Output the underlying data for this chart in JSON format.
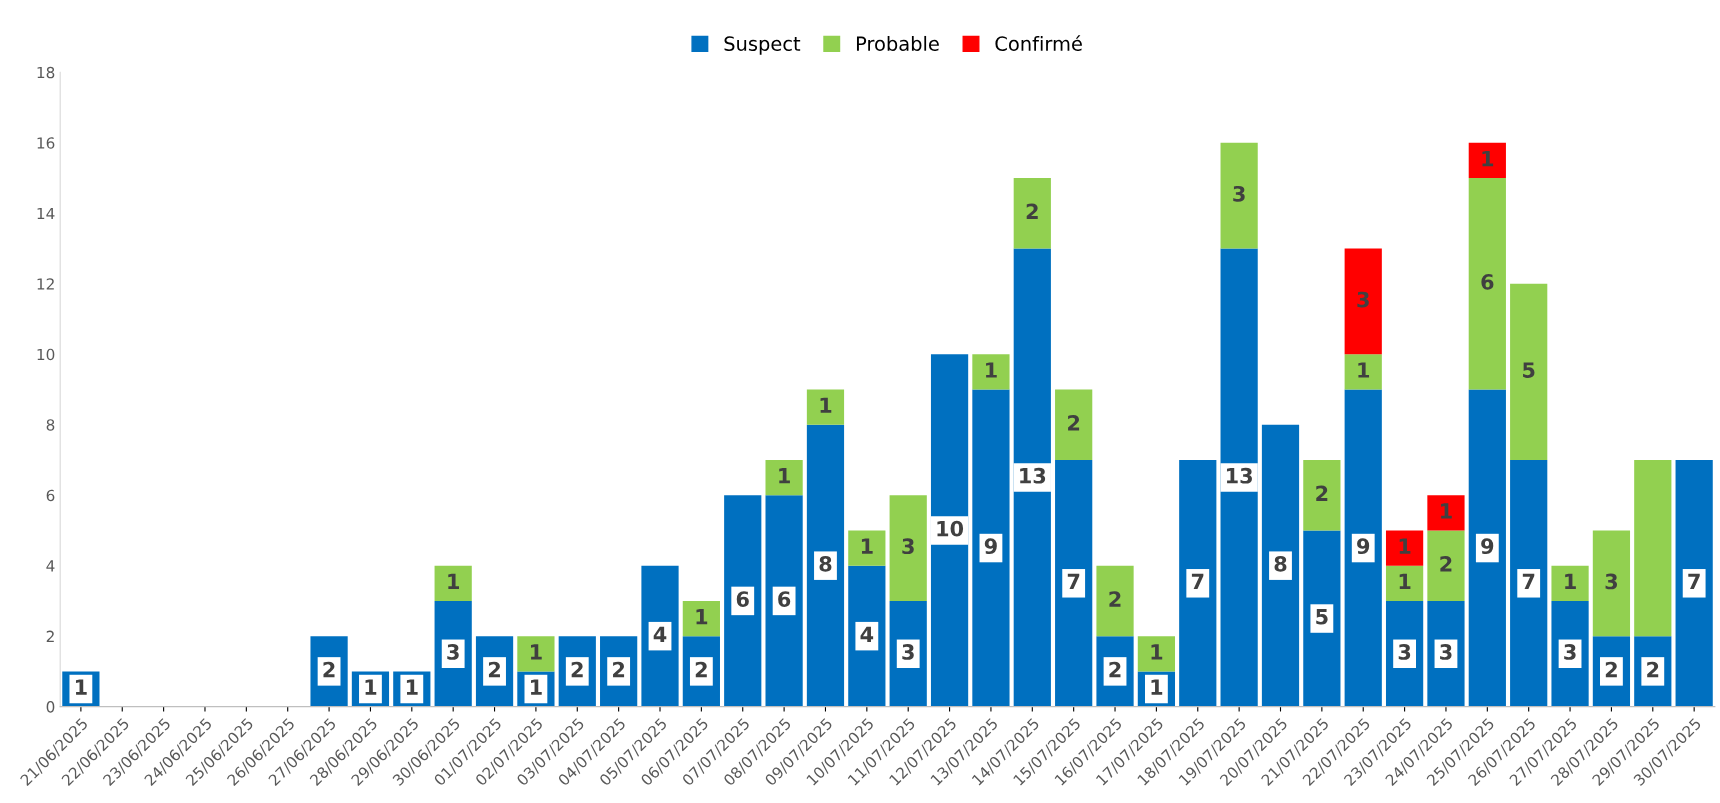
{
  "chart_data": {
    "type": "bar",
    "stacked": true,
    "categories": [
      "21/06/2025",
      "22/06/2025",
      "23/06/2025",
      "24/06/2025",
      "25/06/2025",
      "26/06/2025",
      "27/06/2025",
      "28/06/2025",
      "29/06/2025",
      "30/06/2025",
      "01/07/2025",
      "02/07/2025",
      "03/07/2025",
      "04/07/2025",
      "05/07/2025",
      "06/07/2025",
      "07/07/2025",
      "08/07/2025",
      "09/07/2025",
      "10/07/2025",
      "11/07/2025",
      "12/07/2025",
      "13/07/2025",
      "14/07/2025",
      "15/07/2025",
      "16/07/2025",
      "17/07/2025",
      "18/07/2025",
      "19/07/2025",
      "20/07/2025",
      "21/07/2025",
      "22/07/2025",
      "23/07/2025",
      "24/07/2025",
      "25/07/2025",
      "26/07/2025",
      "27/07/2025",
      "28/07/2025",
      "29/07/2025",
      "30/07/2025"
    ],
    "series": [
      {
        "name": "Suspect",
        "color": "#0070c0",
        "values": [
          1,
          0,
          0,
          0,
          0,
          0,
          2,
          1,
          1,
          3,
          2,
          1,
          2,
          2,
          4,
          2,
          6,
          6,
          8,
          4,
          3,
          10,
          9,
          13,
          7,
          2,
          1,
          7,
          13,
          8,
          5,
          9,
          3,
          3,
          9,
          7,
          3,
          2,
          2,
          7
        ],
        "value_labels": [
          "1",
          null,
          null,
          null,
          null,
          null,
          "2",
          "1",
          "1",
          "3",
          "2",
          "1",
          "2",
          "2",
          "4",
          "2",
          "6",
          "6",
          "8",
          "4",
          "3",
          "10",
          "9",
          "13",
          "7",
          "2",
          "1",
          "7",
          "13",
          "8",
          "5",
          "9",
          "3",
          "3",
          "9",
          "7",
          "3",
          "2",
          "2",
          "7"
        ]
      },
      {
        "name": "Probable",
        "color": "#92d050",
        "values": [
          0,
          0,
          0,
          0,
          0,
          0,
          0,
          0,
          0,
          1,
          0,
          1,
          0,
          0,
          0,
          1,
          0,
          1,
          1,
          1,
          3,
          0,
          1,
          2,
          2,
          2,
          1,
          0,
          3,
          0,
          2,
          1,
          1,
          2,
          6,
          5,
          1,
          3,
          5,
          0
        ],
        "value_labels": [
          null,
          null,
          null,
          null,
          null,
          null,
          null,
          null,
          null,
          "1",
          null,
          "1",
          null,
          null,
          null,
          "1",
          null,
          "1",
          "1",
          "1",
          "3",
          null,
          "1",
          "2",
          "2",
          "2",
          "1",
          null,
          "3",
          null,
          "2",
          "1",
          "1",
          "2",
          "6",
          "5",
          "1",
          "3",
          null,
          null
        ]
      },
      {
        "name": "Confirmé",
        "color": "#ff0000",
        "values": [
          0,
          0,
          0,
          0,
          0,
          0,
          0,
          0,
          0,
          0,
          0,
          0,
          0,
          0,
          0,
          0,
          0,
          0,
          0,
          0,
          0,
          0,
          0,
          0,
          0,
          0,
          0,
          0,
          0,
          0,
          0,
          3,
          1,
          1,
          1,
          0,
          0,
          0,
          0,
          0
        ],
        "value_labels": [
          null,
          null,
          null,
          null,
          null,
          null,
          null,
          null,
          null,
          null,
          null,
          null,
          null,
          null,
          null,
          null,
          null,
          null,
          null,
          null,
          null,
          null,
          null,
          null,
          null,
          null,
          null,
          null,
          null,
          null,
          null,
          "3",
          "1",
          "1",
          "1",
          null,
          null,
          null,
          null,
          null
        ]
      }
    ],
    "ylim": [
      0,
      18
    ],
    "yticks": [
      0,
      2,
      4,
      6,
      8,
      10,
      12,
      14,
      16,
      18
    ],
    "grid": false,
    "legend": "top"
  }
}
